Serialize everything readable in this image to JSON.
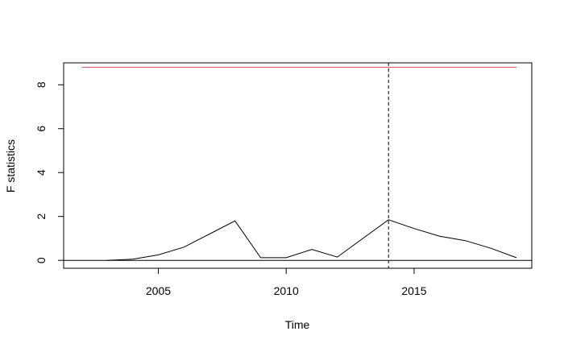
{
  "chart_data": {
    "type": "line",
    "title": "",
    "xlabel": "Time",
    "ylabel": "F statistics",
    "xlim": [
      2001.3,
      2019.6
    ],
    "ylim": [
      -0.36,
      9.0
    ],
    "x_ticks": [
      2005,
      2010,
      2015
    ],
    "y_ticks": [
      0,
      2,
      4,
      6,
      8
    ],
    "grid": false,
    "series": [
      {
        "color": "#000000",
        "x": [
          2003,
          2004,
          2005,
          2006,
          2007,
          2008,
          2009,
          2010,
          2011,
          2012,
          2013,
          2014,
          2015,
          2016,
          2017,
          2018,
          2019
        ],
        "values": [
          0.0,
          0.05,
          0.25,
          0.6,
          1.2,
          1.8,
          0.12,
          0.12,
          0.5,
          0.15,
          1.0,
          1.85,
          1.45,
          1.1,
          0.9,
          0.55,
          0.12
        ]
      }
    ],
    "critical_value": {
      "y": 8.8,
      "x_range": [
        2002,
        2019
      ],
      "color": "#e0536b"
    },
    "breakpoint": {
      "x": 2014,
      "style": "dashed",
      "color": "#000000"
    },
    "zero_line": {
      "y": 0,
      "color": "#000000"
    }
  }
}
